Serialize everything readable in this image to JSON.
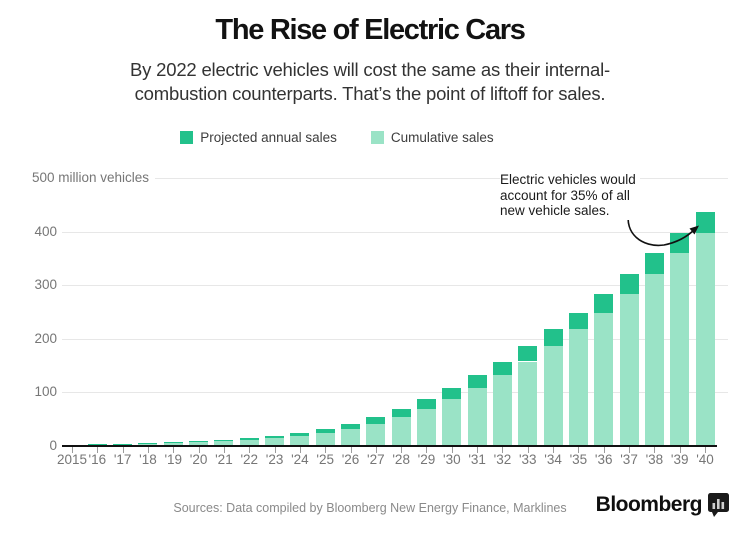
{
  "header": {
    "title": "The Rise of Electric Cars",
    "subtitle_line1": "By 2022 electric vehicles will cost the same as their internal-",
    "subtitle_line2": "combustion counterparts. That’s the point of liftoff for sales."
  },
  "legend": {
    "items": [
      {
        "label": "Projected annual sales",
        "color": "#22c18b"
      },
      {
        "label": "Cumulative sales",
        "color": "#9ae3c6"
      }
    ]
  },
  "chart_data": {
    "type": "bar",
    "stacked": true,
    "title": "The Rise of Electric Cars",
    "unit": "million vehicles",
    "x_labels": [
      "2015",
      "'16",
      "'17",
      "'18",
      "'19",
      "'20",
      "'21",
      "'22",
      "'23",
      "'24",
      "'25",
      "'26",
      "'27",
      "'28",
      "'29",
      "'30",
      "'31",
      "'32",
      "'33",
      "'34",
      "'35",
      "'36",
      "'37",
      "'38",
      "'39",
      "'40"
    ],
    "years": [
      2015,
      2016,
      2017,
      2018,
      2019,
      2020,
      2021,
      2022,
      2023,
      2024,
      2025,
      2026,
      2027,
      2028,
      2029,
      2030,
      2031,
      2032,
      2033,
      2034,
      2035,
      2036,
      2037,
      2038,
      2039,
      2040
    ],
    "series": [
      {
        "name": "Projected annual sales",
        "role": "annual",
        "color": "#22c18b",
        "values": [
          0.4,
          0.7,
          0.9,
          1.2,
          1.6,
          2.1,
          2.7,
          3.4,
          4.4,
          5.7,
          7.4,
          9.6,
          12.2,
          14.8,
          18.5,
          21.5,
          23,
          26,
          29,
          31,
          31.5,
          34,
          38.5,
          39,
          37,
          40
        ]
      },
      {
        "name": "Cumulative sales",
        "role": "cumulative_through_year",
        "color": "#9ae3c6",
        "values": [
          1.3,
          2,
          2.9,
          4.1,
          5.7,
          7.8,
          10.5,
          13.9,
          18.3,
          24,
          31.4,
          41,
          53.2,
          68,
          86.5,
          108,
          131,
          157,
          186,
          217,
          248.5,
          282.5,
          321,
          360,
          397,
          437
        ]
      }
    ],
    "y_axis": {
      "top_label": "500 million vehicles",
      "ticks": [
        0,
        100,
        200,
        300,
        400,
        500
      ],
      "ylim": [
        0,
        500
      ],
      "grid": true
    },
    "legend_position": "top-center",
    "annotation": {
      "line1": "Electric vehicles would",
      "line2": "account for 35% of all",
      "line3": "new vehicle sales."
    }
  },
  "footer": {
    "source": "Sources: Data compiled by Bloomberg New Energy Finance, Marklines",
    "brand": "Bloomberg"
  }
}
